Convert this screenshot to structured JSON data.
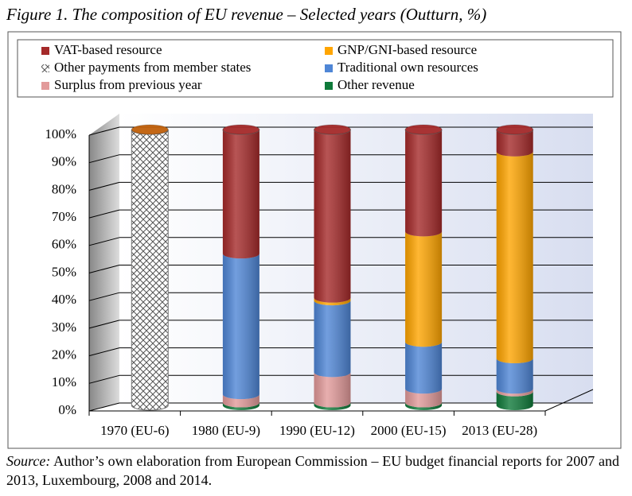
{
  "chart_data": {
    "type": "stacked_cylinder",
    "title": "Figure 1. The composition of EU revenue – Selected years (Outturn, %)",
    "categories": [
      "1970 (EU-6)",
      "1980 (EU-9)",
      "1990 (EU-12)",
      "2000 (EU-15)",
      "2013 (EU-28)"
    ],
    "series": [
      {
        "name": "Other revenue",
        "color": "#0f7a3a",
        "values": [
          0,
          1,
          1,
          1,
          5
        ]
      },
      {
        "name": "Surplus from previous year",
        "color": "#e29a9a",
        "values": [
          0,
          3,
          11,
          5,
          1
        ]
      },
      {
        "name": "Traditional own resources",
        "color": "#4f86d6",
        "values": [
          0,
          51,
          26,
          17,
          11
        ]
      },
      {
        "name": "GNP/GNI-based resource",
        "color": "#ffa500",
        "values": [
          0,
          0,
          1,
          40,
          75
        ]
      },
      {
        "name": "VAT-based resource",
        "color": "#a52a2a",
        "values": [
          0,
          45,
          61,
          37,
          8
        ]
      },
      {
        "name": "Other payments from member states",
        "color": "#ffffff",
        "pattern": "crosshatch",
        "values": [
          100,
          0,
          0,
          0,
          0
        ]
      }
    ],
    "ylim": [
      0,
      100
    ],
    "yticks": [
      {
        "value": 0,
        "label": "0%"
      },
      {
        "value": 10,
        "label": "10%"
      },
      {
        "value": 20,
        "label": "20%"
      },
      {
        "value": 30,
        "label": "30%"
      },
      {
        "value": 40,
        "label": "40%"
      },
      {
        "value": 50,
        "label": "50%"
      },
      {
        "value": 60,
        "label": "60%"
      },
      {
        "value": 70,
        "label": "70%"
      },
      {
        "value": 80,
        "label": "80%"
      },
      {
        "value": 90,
        "label": "90%"
      },
      {
        "value": 100,
        "label": "100%"
      }
    ],
    "grid": true
  },
  "source_label": "Source:",
  "source_text": "Author’s own elaboration from European Commission – EU budget financial reports for 2007 and 2013, Luxembourg, 2008 and 2014."
}
